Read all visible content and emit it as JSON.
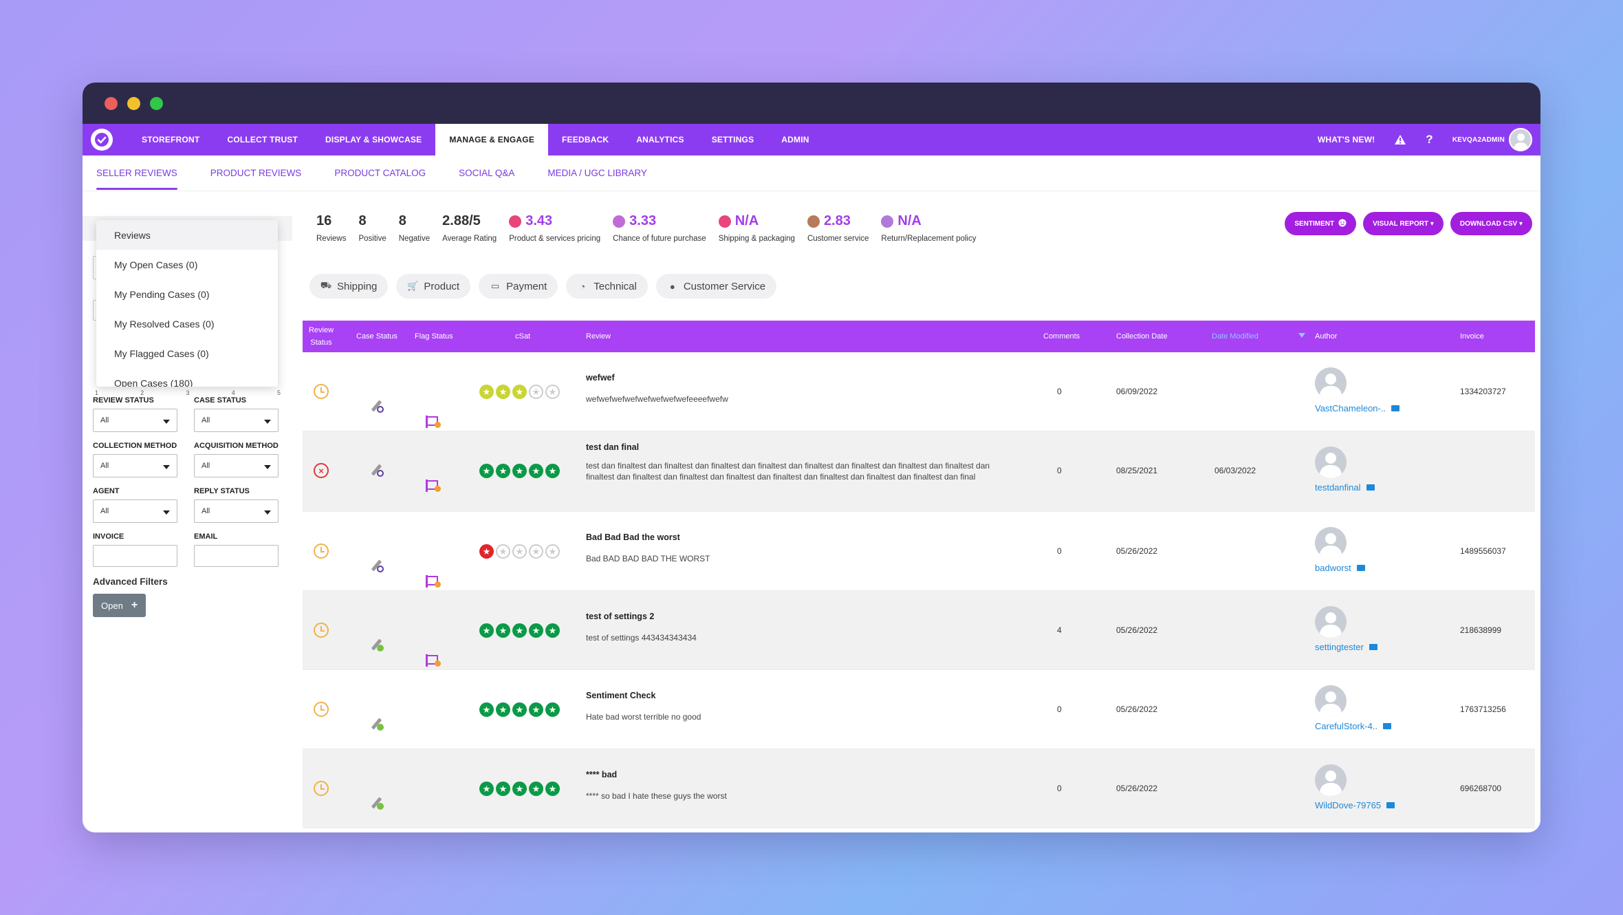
{
  "nav": {
    "items": [
      "STOREFRONT",
      "COLLECT TRUST",
      "DISPLAY & SHOWCASE",
      "MANAGE & ENGAGE",
      "FEEDBACK",
      "ANALYTICS",
      "SETTINGS",
      "ADMIN"
    ],
    "active_index": 3,
    "whats_new": "WHAT'S NEW!",
    "help": "?",
    "username": "KEVQA2ADMIN"
  },
  "subnav": {
    "items": [
      "SELLER REVIEWS",
      "PRODUCT REVIEWS",
      "PRODUCT CATALOG",
      "SOCIAL Q&A",
      "MEDIA / UGC LIBRARY"
    ],
    "active_index": 0
  },
  "dropdown": {
    "items": [
      "Reviews",
      "My Open Cases (0)",
      "My Pending Cases (0)",
      "My Resolved Cases (0)",
      "My Flagged Cases (0)",
      "Open Cases (180)"
    ]
  },
  "filters": {
    "range_ticks": [
      "1",
      "2",
      "3",
      "4",
      "5"
    ],
    "review_status": {
      "label": "REVIEW STATUS",
      "value": "All"
    },
    "case_status": {
      "label": "CASE STATUS",
      "value": "All"
    },
    "collection_method": {
      "label": "COLLECTION METHOD",
      "value": "All"
    },
    "acquisition_method": {
      "label": "ACQUISITION METHOD",
      "value": "All"
    },
    "agent": {
      "label": "AGENT",
      "value": "All"
    },
    "reply_status": {
      "label": "REPLY STATUS",
      "value": "All"
    },
    "invoice": {
      "label": "INVOICE",
      "value": ""
    },
    "email": {
      "label": "EMAIL",
      "value": ""
    },
    "advanced_title": "Advanced Filters",
    "open_label": "Open",
    "open_icon": "+"
  },
  "stats": [
    {
      "value": "16",
      "label": "Reviews"
    },
    {
      "value": "8",
      "label": "Positive"
    },
    {
      "value": "8",
      "label": "Negative"
    },
    {
      "value": "2.88/5",
      "label": "Average Rating"
    }
  ],
  "sentiment_stats": [
    {
      "value": "3.43",
      "label": "Product & services pricing",
      "icon": "price-icon",
      "color": "#e8467a"
    },
    {
      "value": "3.33",
      "label": "Chance of future purchase",
      "icon": "truck-icon",
      "color": "#c06bd8"
    },
    {
      "value": "N/A",
      "label": "Shipping & packaging",
      "icon": "cart-icon",
      "color": "#e8467a"
    },
    {
      "value": "2.83",
      "label": "Customer service",
      "icon": "agent-icon",
      "color": "#b77a5a"
    },
    {
      "value": "N/A",
      "label": "Return/Replacement policy",
      "icon": "return-icon",
      "color": "#b07ad8"
    }
  ],
  "actions": {
    "sentiment": "SENTIMENT",
    "visual_report": "VISUAL REPORT ▾",
    "download_csv": "DOWNLOAD CSV ▾"
  },
  "chips": [
    "Shipping",
    "Product",
    "Payment",
    "Technical",
    "Customer Service"
  ],
  "table": {
    "headers": {
      "review_status": "Review Status",
      "case_status": "Case Status",
      "flag_status": "Flag Status",
      "csat": "cSat",
      "review": "Review",
      "comments": "Comments",
      "collection_date": "Collection Date",
      "date_modified": "Date Modified",
      "author": "Author",
      "invoice": "Invoice"
    },
    "rows": [
      {
        "status": "pending",
        "case": "open",
        "flag": true,
        "stars": 3,
        "star_color": "#c8d534",
        "title": "wefwef",
        "body": "wefwefwefwefwefwefwefwefeeeefwefw",
        "comments": "0",
        "collection_date": "06/09/2022",
        "date_modified": "",
        "author": "VastChameleon-..",
        "invoice": "1334203727"
      },
      {
        "status": "rejected",
        "case": "open",
        "flag": true,
        "stars": 5,
        "star_color": "#0a9a48",
        "title": "test dan final",
        "body": "test dan finaltest dan finaltest dan finaltest dan finaltest dan finaltest dan finaltest dan finaltest dan finaltest dan finaltest dan finaltest dan finaltest dan finaltest dan finaltest dan finaltest dan finaltest dan finaltest dan final",
        "comments": "0",
        "collection_date": "08/25/2021",
        "date_modified": "06/03/2022",
        "author": "testdanfinal",
        "invoice": ""
      },
      {
        "status": "pending",
        "case": "open",
        "flag": true,
        "stars": 1,
        "star_color": "#e0262a",
        "title": "Bad Bad Bad the worst",
        "body": "Bad BAD BAD BAD THE WORST",
        "comments": "0",
        "collection_date": "05/26/2022",
        "date_modified": "",
        "author": "badworst",
        "invoice": "1489556037"
      },
      {
        "status": "pending",
        "case": "resolved",
        "flag": true,
        "stars": 5,
        "star_color": "#0a9a48",
        "title": "test of settings 2",
        "body": "test of settings 443434343434",
        "comments": "4",
        "collection_date": "05/26/2022",
        "date_modified": "",
        "author": "settingtester",
        "invoice": "218638999"
      },
      {
        "status": "pending",
        "case": "resolved",
        "flag": false,
        "stars": 5,
        "star_color": "#0a9a48",
        "title": "Sentiment Check",
        "body": "Hate bad worst terrible no good",
        "comments": "0",
        "collection_date": "05/26/2022",
        "date_modified": "",
        "author": "CarefulStork-4..",
        "invoice": "1763713256"
      },
      {
        "status": "pending",
        "case": "resolved",
        "flag": false,
        "stars": 5,
        "star_color": "#0a9a48",
        "title": "**** bad",
        "body": "**** so bad I hate these guys the worst",
        "comments": "0",
        "collection_date": "05/26/2022",
        "date_modified": "",
        "author": "WildDove-79765",
        "invoice": "696268700"
      }
    ]
  }
}
